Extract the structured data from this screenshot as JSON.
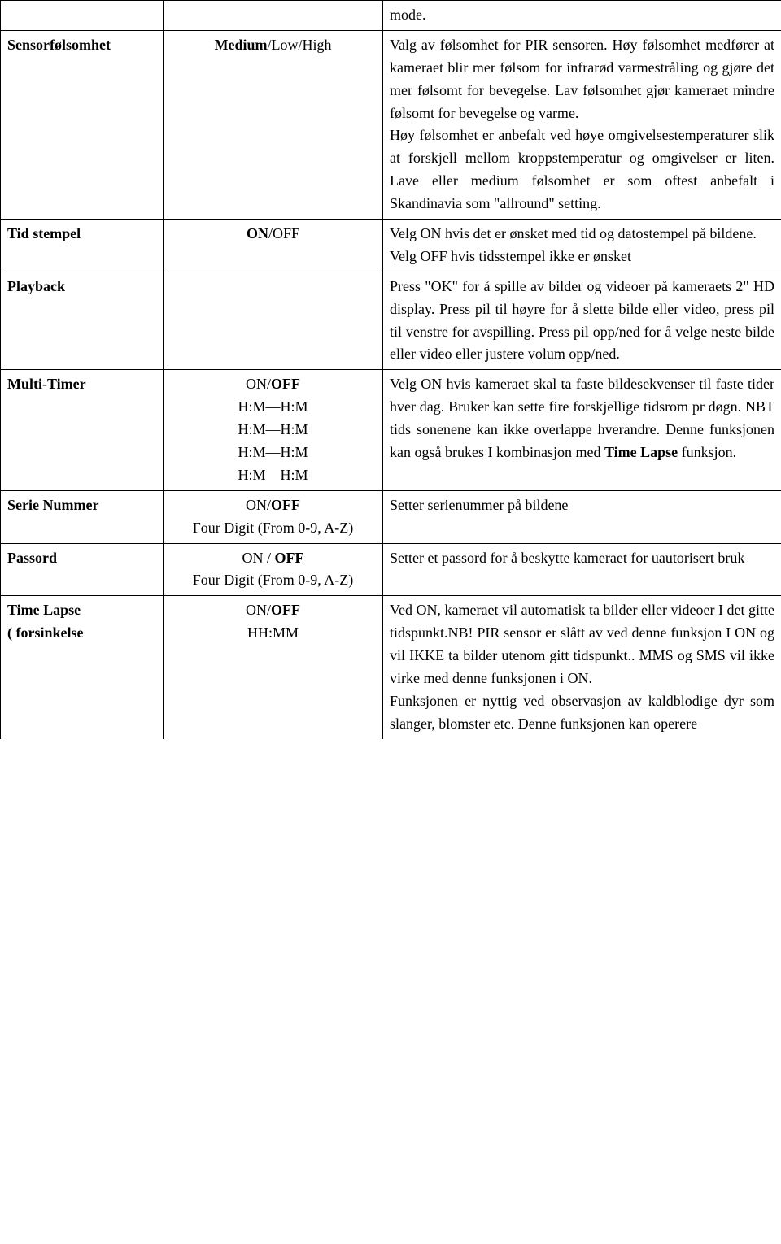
{
  "rows": [
    {
      "col1": "",
      "col2": "",
      "col3_parts": [
        {
          "text": "mode.",
          "bold": false
        }
      ]
    },
    {
      "col1": "Sensorfølsomhet",
      "col2_parts": [
        {
          "text": "Medium",
          "bold": true
        },
        {
          "text": "/Low/High",
          "bold": false
        }
      ],
      "col3_parts": [
        {
          "text": "Valg av følsomhet for PIR sensoren. Høy følsomhet medfører at kameraet blir mer følsom for infrarød varmestråling og gjøre det mer følsomt for bevegelse. Lav følsomhet gjør kameraet mindre følsomt for bevegelse og varme."
        },
        {
          "br": true
        },
        {
          "text": "Høy følsomhet er anbefalt ved høye omgivelsestemperaturer slik at forskjell mellom kroppstemperatur og omgivelser er liten. Lave eller medium følsomhet er som oftest anbefalt i Skandinavia som \"allround\" setting."
        }
      ],
      "col3_justify": true
    },
    {
      "col1": "Tid stempel",
      "col2_parts": [
        {
          "text": "ON",
          "bold": true
        },
        {
          "text": "/OFF",
          "bold": false
        }
      ],
      "col3_parts": [
        {
          "text": "Velg ON hvis det er ønsket med tid og datostempel på bildene."
        },
        {
          "br": true
        },
        {
          "text": "Velg OFF hvis tidsstempel ikke er ønsket"
        }
      ],
      "col3_justify": true
    },
    {
      "col1": "Playback",
      "col2": "",
      "col3_parts": [
        {
          "text": "Press \"OK\" for å spille av bilder og videoer på kameraets 2\" HD display. Press pil til høyre for å slette bilde eller video, press pil til venstre for avspilling. Press pil opp/ned for å velge neste bilde eller video eller justere volum opp/ned."
        }
      ],
      "col3_justify": true
    },
    {
      "col1": "Multi-Timer",
      "col2_lines": [
        [
          {
            "text": "ON/",
            "bold": false
          },
          {
            "text": "OFF",
            "bold": true
          }
        ],
        [
          {
            "text": "H:M—H:M"
          }
        ],
        [
          {
            "text": "H:M—H:M"
          }
        ],
        [
          {
            "text": "H:M—H:M"
          }
        ],
        [
          {
            "text": "H:M—H:M"
          }
        ]
      ],
      "col3_parts": [
        {
          "text": "Velg ON hvis kameraet skal ta faste bildesekvenser til faste tider hver dag. Bruker kan sette fire forskjellige tidsrom pr døgn. NBT tids sonenene kan ikke overlappe hverandre. Denne funksjonen kan også brukes I kombinasjon med "
        },
        {
          "text": "Time Lapse",
          "bold": true
        },
        {
          "text": " funksjon."
        }
      ],
      "col3_justify": true
    },
    {
      "col1": "Serie Nummer",
      "col2_lines": [
        [
          {
            "text": "ON/",
            "bold": false
          },
          {
            "text": "OFF",
            "bold": true
          }
        ],
        [
          {
            "text": "Four Digit (From 0-9, A-Z)"
          }
        ]
      ],
      "col3_parts": [
        {
          "text": "Setter serienummer på bildene"
        }
      ]
    },
    {
      "col1": "Passord",
      "col2_lines": [
        [
          {
            "text": "ON / ",
            "bold": false
          },
          {
            "text": "OFF",
            "bold": true
          }
        ],
        [
          {
            "text": "Four Digit (From 0-9, A-Z)"
          }
        ]
      ],
      "col3_parts": [
        {
          "text": "Setter et passord for å beskytte kameraet for uautorisert bruk"
        }
      ]
    },
    {
      "col1_lines": [
        "Time Lapse",
        "( forsinkelse"
      ],
      "col2_lines": [
        [
          {
            "text": "ON/",
            "bold": false
          },
          {
            "text": "OFF",
            "bold": true
          }
        ],
        [
          {
            "text": "HH:MM"
          }
        ]
      ],
      "col3_parts": [
        {
          "text": "Ved ON, kameraet vil automatisk ta bilder eller videoer I det gitte tidspunkt.NB! PIR sensor er slått av ved denne funksjon I ON og vil IKKE ta bilder utenom gitt tidspunkt.. MMS og SMS vil ikke virke med denne funksjonen i ON."
        },
        {
          "br": true
        },
        {
          "text": "Funksjonen er nyttig ved observasjon av kaldblodige dyr som slanger, blomster etc.     Denne   funksjonen   kan   operere"
        }
      ],
      "col3_justify": true,
      "no_bottom": true
    }
  ]
}
